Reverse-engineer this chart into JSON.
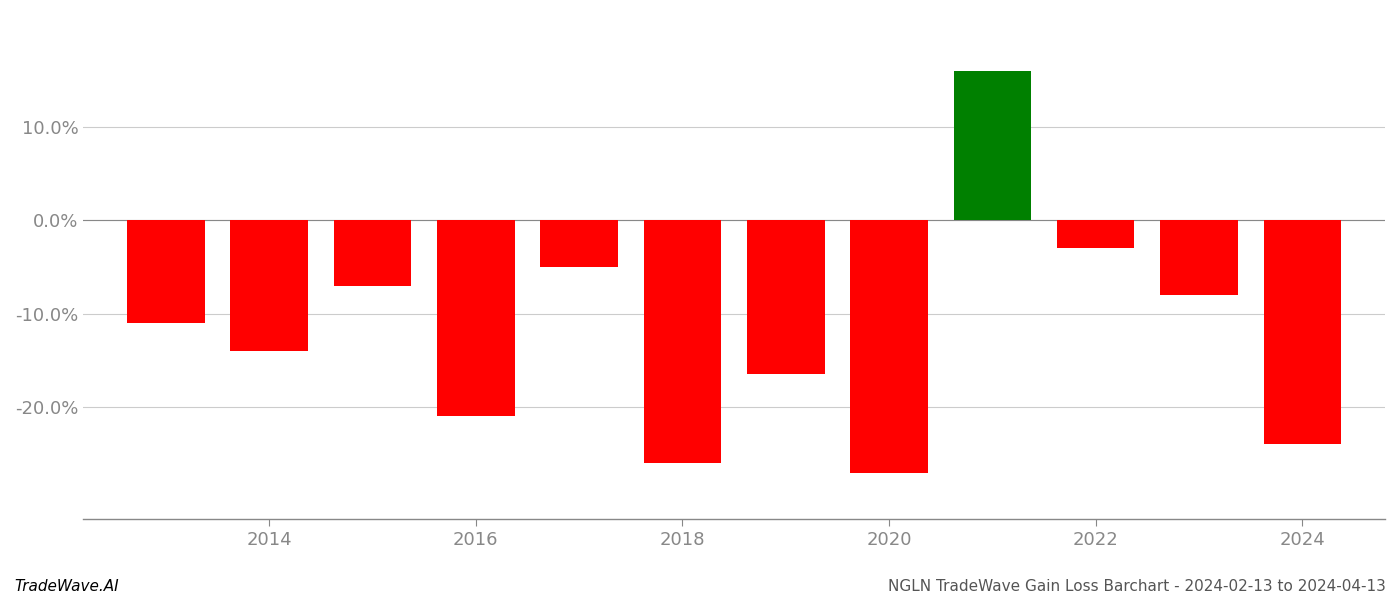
{
  "years": [
    2013,
    2014,
    2015,
    2016,
    2017,
    2018,
    2019,
    2020,
    2021,
    2022,
    2023,
    2024
  ],
  "values": [
    -11.0,
    -14.0,
    -7.0,
    -21.0,
    -5.0,
    -26.0,
    -16.5,
    -27.0,
    16.0,
    -3.0,
    -8.0,
    -24.0
  ],
  "colors": [
    "red",
    "red",
    "red",
    "red",
    "red",
    "red",
    "red",
    "red",
    "green",
    "red",
    "red",
    "red"
  ],
  "bar_width": 0.75,
  "ylim": [
    -32,
    22
  ],
  "yticks": [
    -20.0,
    -10.0,
    0.0,
    10.0
  ],
  "xticks": [
    2014,
    2016,
    2018,
    2020,
    2022,
    2024
  ],
  "xlim": [
    2012.2,
    2024.8
  ],
  "footer_left": "TradeWave.AI",
  "footer_right": "NGLN TradeWave Gain Loss Barchart - 2024-02-13 to 2024-04-13",
  "background_color": "#ffffff",
  "grid_color": "#cccccc",
  "axis_color": "#888888",
  "tick_label_color": "#888888",
  "footer_fontsize": 11,
  "tick_fontsize": 13
}
